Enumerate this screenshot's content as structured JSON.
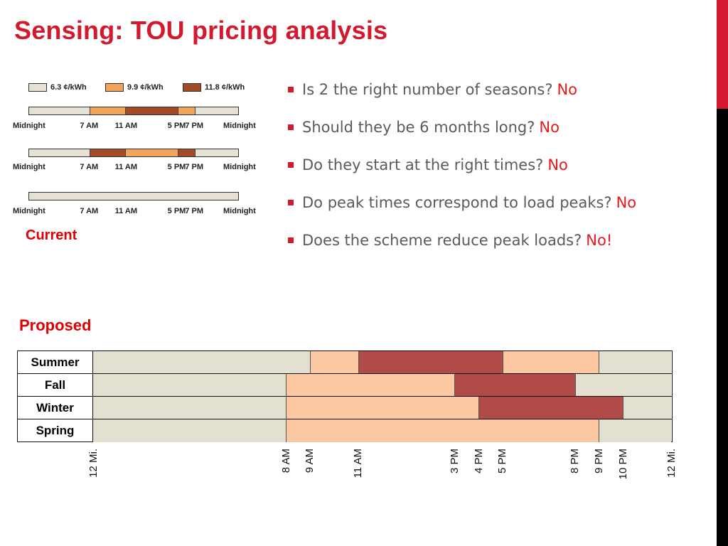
{
  "title": "Sensing: TOU pricing analysis",
  "colors": {
    "accent": "#d3192e",
    "off_peak": "#e5e1d4",
    "mid_peak": "#f2a45a",
    "on_peak": "#a34a28",
    "prop_off": "#e3e0d2",
    "prop_mid": "#fcc8a2",
    "prop_peak": "#b14b47"
  },
  "current_label": "Current",
  "proposed_label": "Proposed",
  "bullets": [
    {
      "text": "Is 2 the right number of seasons?",
      "answer": "No"
    },
    {
      "text": "Should they be 6 months long?",
      "answer": "No"
    },
    {
      "text": "Do they start at the right times?",
      "answer": "No"
    },
    {
      "text": "Do peak times correspond to load peaks?",
      "answer": "No"
    },
    {
      "text": "Does the scheme reduce peak loads?",
      "answer": "No!"
    }
  ],
  "chart_data": [
    {
      "type": "bar",
      "legend": [
        {
          "label": "6.3 ¢/kWh",
          "level": "off"
        },
        {
          "label": "9.9 ¢/kWh",
          "level": "mid"
        },
        {
          "label": "11.8 ¢/kWh",
          "level": "on"
        }
      ],
      "tick_labels": [
        "Midnight",
        "7 AM",
        "11 AM",
        "5 PM",
        "7 PM",
        "Midnight"
      ],
      "tick_hours": [
        0,
        7,
        11,
        17,
        19,
        24
      ],
      "rows": [
        [
          {
            "start": 0,
            "end": 7,
            "level": "off"
          },
          {
            "start": 7,
            "end": 11,
            "level": "mid"
          },
          {
            "start": 11,
            "end": 17,
            "level": "on"
          },
          {
            "start": 17,
            "end": 19,
            "level": "mid"
          },
          {
            "start": 19,
            "end": 24,
            "level": "off"
          }
        ],
        [
          {
            "start": 0,
            "end": 7,
            "level": "off"
          },
          {
            "start": 7,
            "end": 11,
            "level": "on"
          },
          {
            "start": 11,
            "end": 17,
            "level": "mid"
          },
          {
            "start": 17,
            "end": 19,
            "level": "on"
          },
          {
            "start": 19,
            "end": 24,
            "level": "off"
          }
        ],
        [
          {
            "start": 0,
            "end": 24,
            "level": "off"
          }
        ]
      ]
    },
    {
      "type": "bar",
      "seasons": [
        {
          "name": "Summer",
          "segments": [
            {
              "start": 0,
              "end": 9,
              "level": "off"
            },
            {
              "start": 9,
              "end": 11,
              "level": "mid"
            },
            {
              "start": 11,
              "end": 17,
              "level": "peak"
            },
            {
              "start": 17,
              "end": 21,
              "level": "mid"
            },
            {
              "start": 21,
              "end": 24,
              "level": "off"
            }
          ]
        },
        {
          "name": "Fall",
          "segments": [
            {
              "start": 0,
              "end": 8,
              "level": "off"
            },
            {
              "start": 8,
              "end": 15,
              "level": "mid"
            },
            {
              "start": 15,
              "end": 20,
              "level": "peak"
            },
            {
              "start": 20,
              "end": 24,
              "level": "off"
            }
          ]
        },
        {
          "name": "Winter",
          "segments": [
            {
              "start": 0,
              "end": 8,
              "level": "off"
            },
            {
              "start": 8,
              "end": 16,
              "level": "mid"
            },
            {
              "start": 16,
              "end": 22,
              "level": "peak"
            },
            {
              "start": 22,
              "end": 24,
              "level": "off"
            }
          ]
        },
        {
          "name": "Spring",
          "segments": [
            {
              "start": 0,
              "end": 8,
              "level": "off"
            },
            {
              "start": 8,
              "end": 21,
              "level": "mid"
            },
            {
              "start": 21,
              "end": 24,
              "level": "off"
            }
          ]
        }
      ],
      "tick_labels": [
        "12 Mi.",
        "8 AM",
        "9 AM",
        "11 AM",
        "3 PM",
        "4 PM",
        "5 PM",
        "8 PM",
        "9 PM",
        "10 PM",
        "12 Mi."
      ],
      "tick_hours": [
        0,
        8,
        9,
        11,
        15,
        16,
        17,
        20,
        21,
        22,
        24
      ]
    }
  ]
}
